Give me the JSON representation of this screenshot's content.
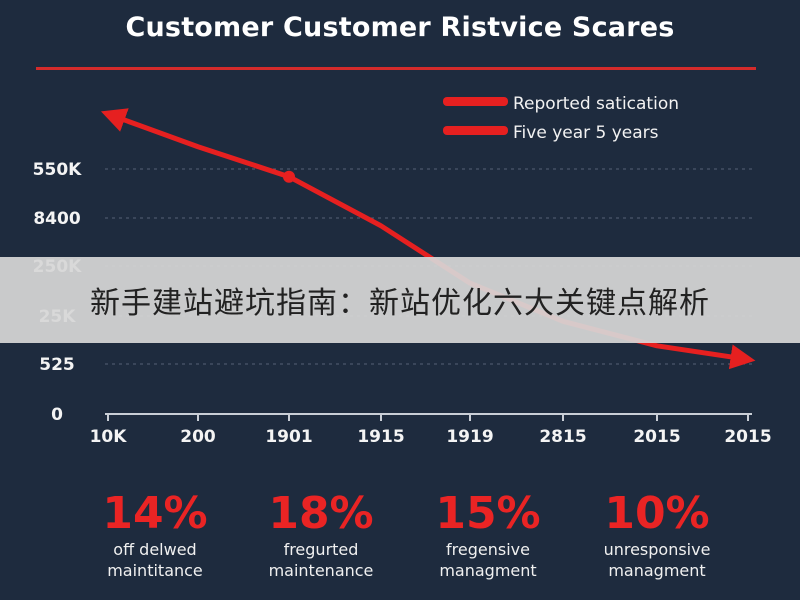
{
  "title": "Customer Customer Ristvice Scares",
  "legend": [
    {
      "label": "Reported satication",
      "color": "#e62020"
    },
    {
      "label": "Five year 5 years",
      "color": "#e62020"
    }
  ],
  "banner_text": "新手建站避坑指南：新站优化六大关键点解析",
  "chart_data": {
    "type": "line",
    "title": "Customer Customer Ristvice Scares",
    "x_tick_labels": [
      "10K",
      "200",
      "1901",
      "1915",
      "1919",
      "2815",
      "2015",
      "2015"
    ],
    "y_tick_labels": [
      "0",
      "525",
      "25K",
      "250K",
      "8400",
      "550K"
    ],
    "series": [
      {
        "name": "Reported satication",
        "color": "#e62020",
        "values": [
          5.5,
          4.9,
          4.35,
          3.45,
          2.4,
          1.7,
          1.25,
          1.0
        ],
        "marker_index": 2
      },
      {
        "name": "Five year 5 years",
        "color": "#e62020",
        "values": [
          5.5,
          4.9,
          4.35,
          3.45,
          2.4,
          1.7,
          1.25,
          1.0
        ]
      }
    ],
    "ylim": [
      0,
      5.5
    ],
    "grid": true,
    "legend_position": "top-right"
  },
  "stats": [
    {
      "value": "14%",
      "label_line1": "off delwed",
      "label_line2": "maintitance"
    },
    {
      "value": "18%",
      "label_line1": "fregurted",
      "label_line2": "maintenance"
    },
    {
      "value": "15%",
      "label_line1": "fregensive",
      "label_line2": "managment"
    },
    {
      "value": "10%",
      "label_line1": "unresponsive",
      "label_line2": "managment"
    }
  ]
}
